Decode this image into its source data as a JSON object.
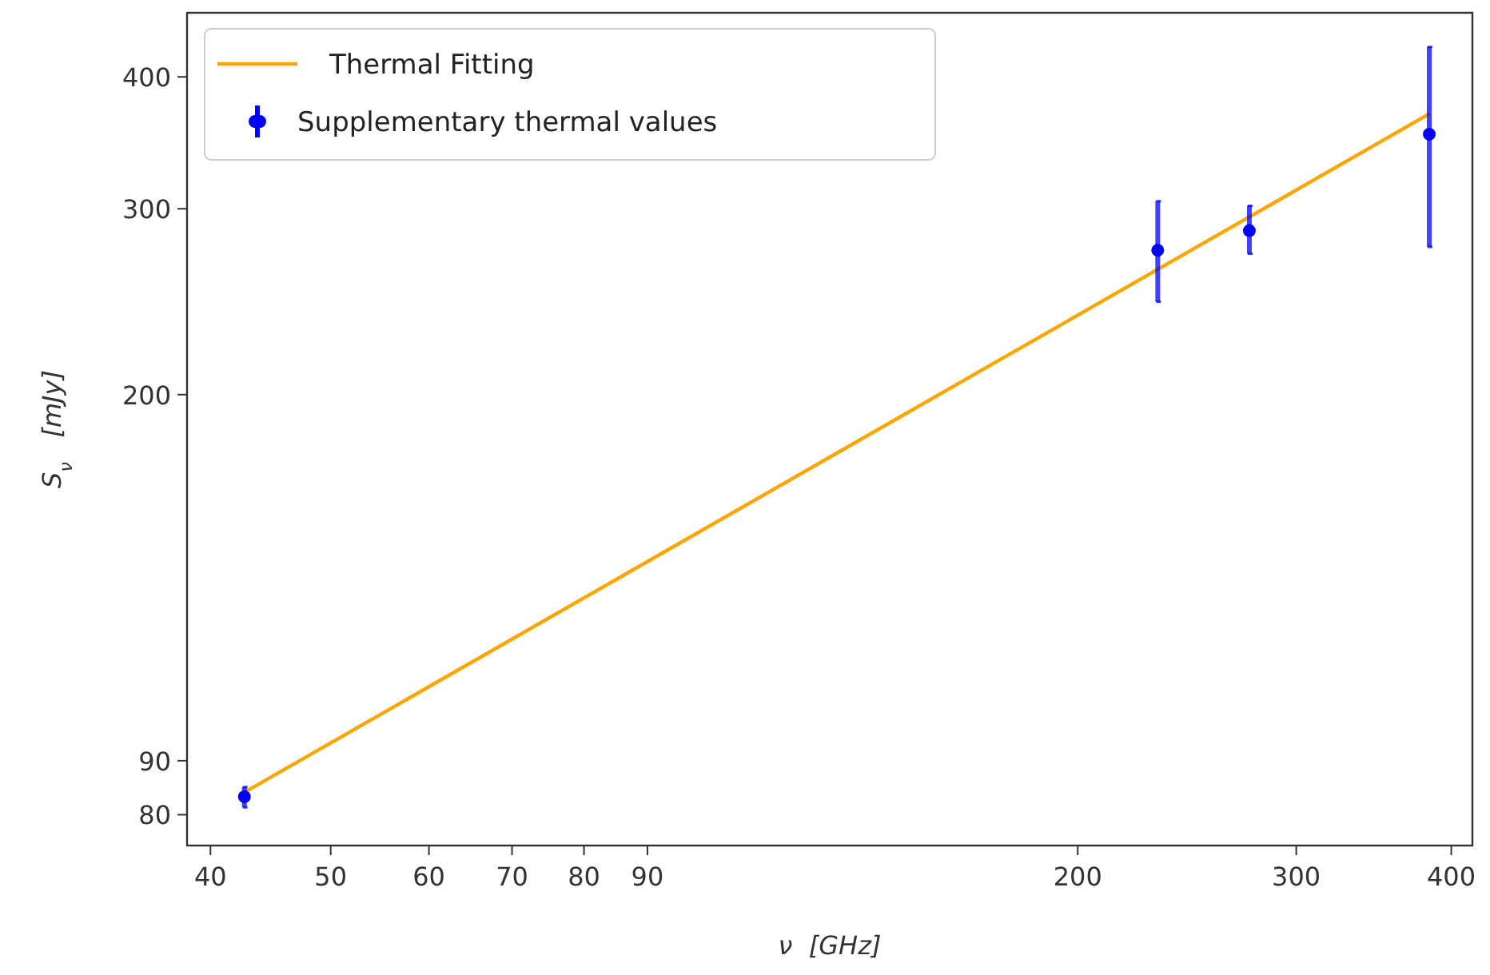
{
  "chart_data": {
    "type": "line",
    "xlabel": "ν  [GHz]",
    "ylabel": "S$_{ν}$   [mJy]",
    "log": "xy",
    "grid": false,
    "legend": "top left",
    "xlim": [
      38.3,
      416
    ],
    "xticks": [
      40,
      50,
      60,
      70,
      80,
      90,
      200,
      300,
      400
    ],
    "ylim": [
      74.8,
      460
    ],
    "yticks": [
      80,
      90,
      200,
      300,
      400
    ],
    "series": [
      {
        "name": "Thermal Fitting",
        "color": "#ffa500",
        "marker": "none",
        "line_style": "solid",
        "x": [
          42.6,
          384
        ],
        "values": [
          84,
          369
        ]
      },
      {
        "name": "Supplementary thermal values",
        "type": "scatter",
        "color": "#0000ff",
        "marker": "circle",
        "x": [
          42.6,
          232,
          275,
          384
        ],
        "values": [
          83.2,
          274,
          286,
          353
        ],
        "errors": [
          [
            81.3,
            85
          ],
          [
            245,
            305
          ],
          [
            272,
            302
          ],
          [
            276,
            427
          ]
        ]
      }
    ]
  }
}
